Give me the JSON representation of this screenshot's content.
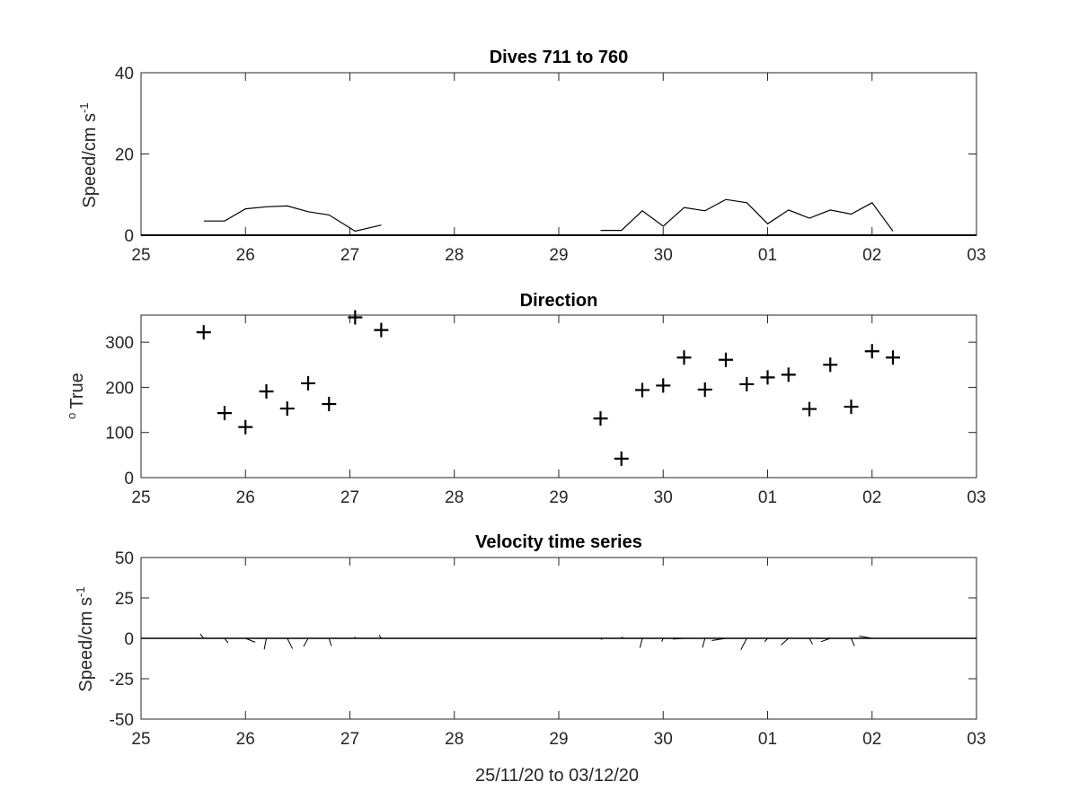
{
  "figure": {
    "xlabel": "25/11/20 to 03/12/20",
    "x_tick_labels": [
      "25",
      "26",
      "27",
      "28",
      "29",
      "30",
      "01",
      "02",
      "03"
    ]
  },
  "chart_data": [
    {
      "type": "line",
      "title": "Dives 711 to 760",
      "ylabel": "Speed/cm s",
      "ylabel_superscript": "-1",
      "xlim": [
        0,
        8
      ],
      "ylim": [
        0,
        40
      ],
      "yticks": [
        0,
        20,
        40
      ],
      "x_unit": "days from 25/11/20",
      "series": [
        {
          "values": [
            [
              0.6,
              3.5
            ],
            [
              0.8,
              3.5
            ],
            [
              1.0,
              6.5
            ],
            [
              1.2,
              7.0
            ],
            [
              1.4,
              7.2
            ],
            [
              1.6,
              5.8
            ],
            [
              1.8,
              5.0
            ],
            [
              2.05,
              1.0
            ],
            [
              2.3,
              2.5
            ]
          ]
        },
        {
          "values": [
            [
              4.4,
              1.2
            ],
            [
              4.6,
              1.2
            ],
            [
              4.8,
              6.0
            ],
            [
              5.0,
              2.2
            ],
            [
              5.2,
              6.8
            ],
            [
              5.4,
              6.0
            ],
            [
              5.6,
              8.8
            ],
            [
              5.8,
              8.0
            ],
            [
              6.0,
              2.8
            ],
            [
              6.2,
              6.2
            ],
            [
              6.4,
              4.2
            ],
            [
              6.6,
              6.2
            ],
            [
              6.8,
              5.2
            ],
            [
              7.0,
              8.0
            ],
            [
              7.2,
              1.0
            ]
          ]
        }
      ]
    },
    {
      "type": "scatter",
      "title": "Direction",
      "ylabel": "True",
      "ylabel_prefix": "o",
      "xlim": [
        0,
        8
      ],
      "ylim": [
        0,
        360
      ],
      "yticks": [
        0,
        100,
        200,
        300
      ],
      "marker": "+",
      "points": [
        [
          0.6,
          322
        ],
        [
          0.8,
          143
        ],
        [
          1.0,
          112
        ],
        [
          1.2,
          191
        ],
        [
          1.4,
          153
        ],
        [
          1.6,
          209
        ],
        [
          1.8,
          163
        ],
        [
          2.05,
          355
        ],
        [
          2.3,
          327
        ],
        [
          4.4,
          131
        ],
        [
          4.6,
          42
        ],
        [
          4.8,
          194
        ],
        [
          5.0,
          204
        ],
        [
          5.2,
          266
        ],
        [
          5.4,
          195
        ],
        [
          5.6,
          261
        ],
        [
          5.8,
          207
        ],
        [
          6.0,
          222
        ],
        [
          6.2,
          228
        ],
        [
          6.4,
          152
        ],
        [
          6.6,
          250
        ],
        [
          6.8,
          157
        ],
        [
          7.0,
          280
        ],
        [
          7.2,
          266
        ]
      ]
    },
    {
      "type": "stick",
      "title": "Velocity time series",
      "ylabel": "Speed/cm s",
      "ylabel_superscript": "-1",
      "xlim": [
        0,
        8
      ],
      "ylim": [
        -50,
        50
      ],
      "yticks": [
        -50,
        -25,
        0,
        25,
        50
      ],
      "sticks": [
        [
          0.6,
          3.5,
          322
        ],
        [
          0.8,
          3.5,
          143
        ],
        [
          1.0,
          6.5,
          112
        ],
        [
          1.2,
          7.0,
          191
        ],
        [
          1.4,
          7.2,
          153
        ],
        [
          1.6,
          5.8,
          209
        ],
        [
          1.8,
          5.0,
          163
        ],
        [
          2.05,
          1.0,
          355
        ],
        [
          2.3,
          2.5,
          327
        ],
        [
          4.4,
          1.2,
          131
        ],
        [
          4.6,
          1.2,
          42
        ],
        [
          4.8,
          6.0,
          194
        ],
        [
          5.0,
          2.2,
          204
        ],
        [
          5.2,
          6.8,
          266
        ],
        [
          5.4,
          6.0,
          195
        ],
        [
          5.6,
          8.8,
          261
        ],
        [
          5.8,
          8.0,
          207
        ],
        [
          6.0,
          2.8,
          222
        ],
        [
          6.2,
          6.2,
          228
        ],
        [
          6.4,
          4.2,
          152
        ],
        [
          6.6,
          6.2,
          250
        ],
        [
          6.8,
          5.2,
          157
        ],
        [
          7.0,
          8.0,
          280
        ],
        [
          7.2,
          1.0,
          266
        ]
      ]
    }
  ]
}
